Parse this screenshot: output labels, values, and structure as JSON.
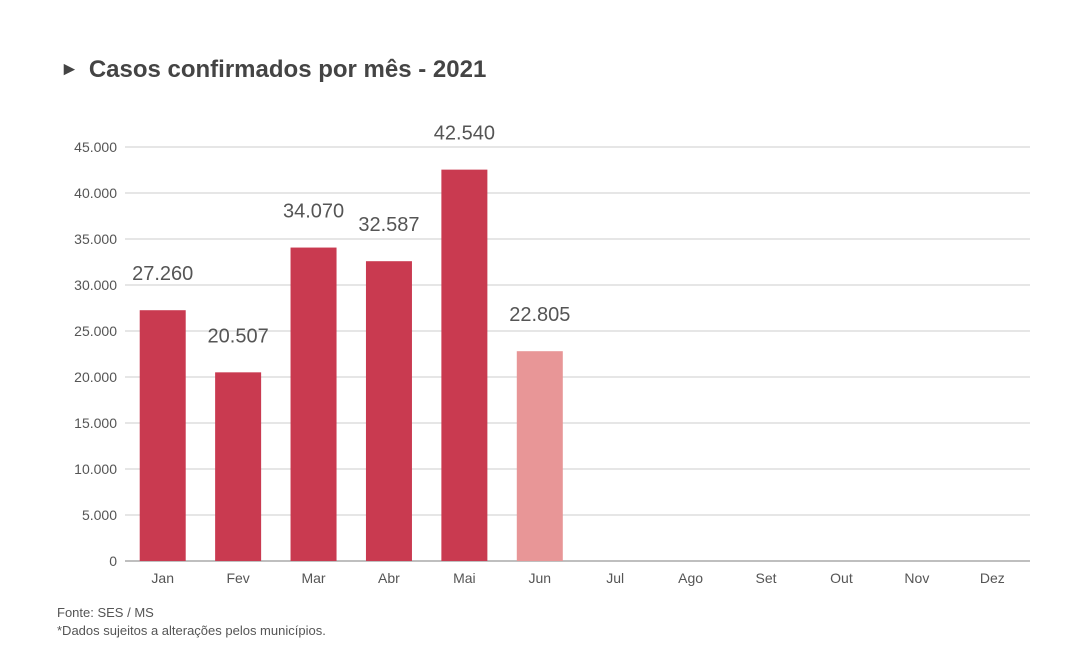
{
  "title": "Casos confirmados por mês - 2021",
  "title_marker": "►",
  "footer": {
    "source": "Fonte: SES / MS",
    "note": "*Dados sujeitos a alterações pelos municípios."
  },
  "chart_data": {
    "type": "bar",
    "title": "Casos confirmados por mês - 2021",
    "categories": [
      "Jan",
      "Fev",
      "Mar",
      "Abr",
      "Mai",
      "Jun",
      "Jul",
      "Ago",
      "Set",
      "Out",
      "Nov",
      "Dez"
    ],
    "values": [
      27260,
      20507,
      34070,
      32587,
      42540,
      22805,
      null,
      null,
      null,
      null,
      null,
      null
    ],
    "data_labels": [
      "27.260",
      "20.507",
      "34.070",
      "32.587",
      "42.540",
      "22.805",
      "",
      "",
      "",
      "",
      "",
      ""
    ],
    "y_ticks": [
      0,
      5000,
      10000,
      15000,
      20000,
      25000,
      30000,
      35000,
      40000,
      45000
    ],
    "y_tick_labels": [
      "0",
      "5.000",
      "10.000",
      "15.000",
      "20.000",
      "25.000",
      "30.000",
      "35.000",
      "40.000",
      "45.000"
    ],
    "ylim": [
      0,
      45000
    ],
    "xlabel": "",
    "ylabel": "",
    "grid": true,
    "colors": {
      "bar": "#C93A50",
      "bar_partial": "#E89697",
      "grid": "#CCCCCC",
      "axis_label": "#555555",
      "data_label": "#555555"
    },
    "partial_index": 5
  }
}
